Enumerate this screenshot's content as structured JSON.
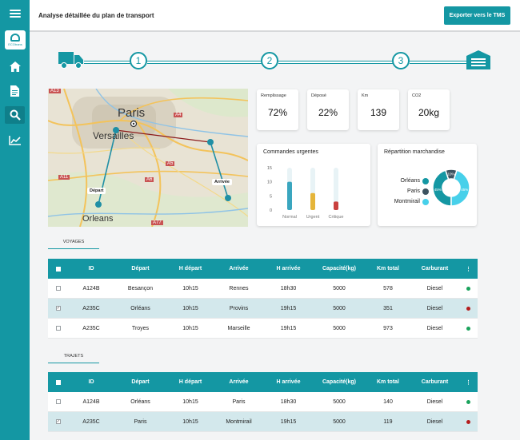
{
  "header": {
    "title": "Analyse détaillée du plan de transport",
    "export_label": "Exporter vers le TMS"
  },
  "sidebar": {
    "logo_text": "ECOtrans",
    "items": [
      {
        "icon": "menu-icon"
      },
      {
        "icon": "home-icon"
      },
      {
        "icon": "document-icon"
      },
      {
        "icon": "search-icon",
        "active": true
      },
      {
        "icon": "chart-icon"
      }
    ]
  },
  "stepper": {
    "steps": [
      "1",
      "2",
      "3"
    ]
  },
  "map": {
    "labels": {
      "paris": "Paris",
      "versailles": "Versailles",
      "orleans": "Orleans"
    },
    "roads": {
      "a13": "A13",
      "a4": "A4",
      "a5": "A5",
      "a11": "A11",
      "a6": "A6",
      "a77": "A77"
    },
    "depart": "Départ",
    "arrivee": "Arrivée"
  },
  "stats": [
    {
      "label": "Remplissage",
      "value": "72%"
    },
    {
      "label": "Déposé",
      "value": "22%"
    },
    {
      "label": "Km",
      "value": "139"
    },
    {
      "label": "CO2",
      "value": "20kg"
    }
  ],
  "commandes": {
    "title": "Commandes urgentes",
    "chart_data": {
      "type": "bar",
      "title": "Commandes urgentes",
      "categories": [
        "Normal",
        "Urgent",
        "Critique"
      ],
      "values": [
        10,
        6,
        3
      ],
      "ylim": [
        0,
        15
      ],
      "yticks": [
        "15",
        "10",
        "5",
        "0"
      ],
      "colors": [
        "#3aa6bf",
        "#e5b53a",
        "#c9413f"
      ]
    }
  },
  "repartition": {
    "title": "Répartition marchandise",
    "legend": [
      {
        "label": "Orléans",
        "color": "#1497a3"
      },
      {
        "label": "Paris",
        "color": "#3d5360"
      },
      {
        "label": "Montmirail",
        "color": "#47d0ea"
      }
    ],
    "chart_data": {
      "type": "pie",
      "categories": [
        "Orléans",
        "Paris",
        "Montmirail"
      ],
      "values": [
        45,
        10,
        45
      ],
      "labels": [
        "45%",
        "10%",
        "45%"
      ]
    }
  },
  "tabs": {
    "voyages": "VOYAGES",
    "trajets": "TRAJETS"
  },
  "columns": [
    "ID",
    "Départ",
    "H départ",
    "Arrivée",
    "H arrivée",
    "Capacité(kg)",
    "Km total",
    "Carburant"
  ],
  "more_symbol": "⋮",
  "check_symbol": "✓",
  "voyages": [
    {
      "id": "A124B",
      "depart": "Besançon",
      "h_depart": "10h15",
      "arrivee": "Rennes",
      "h_arrivee": "18h30",
      "capacite": "5000",
      "km": "578",
      "carburant": "Diesel",
      "checked": false,
      "status": "#1aa35c"
    },
    {
      "id": "A235C",
      "depart": "Orléans",
      "h_depart": "10h15",
      "arrivee": "Provins",
      "h_arrivee": "19h15",
      "capacite": "5000",
      "km": "351",
      "carburant": "Diesel",
      "checked": true,
      "status": "#b51d1d"
    },
    {
      "id": "A235C",
      "depart": "Troyes",
      "h_depart": "10h15",
      "arrivee": "Marseille",
      "h_arrivee": "19h15",
      "capacite": "5000",
      "km": "973",
      "carburant": "Diesel",
      "checked": false,
      "status": "#1aa35c"
    }
  ],
  "trajets": [
    {
      "id": "A124B",
      "depart": "Orléans",
      "h_depart": "10h15",
      "arrivee": "Paris",
      "h_arrivee": "18h30",
      "capacite": "5000",
      "km": "140",
      "carburant": "Diesel",
      "checked": false,
      "status": "#1aa35c"
    },
    {
      "id": "A235C",
      "depart": "Paris",
      "h_depart": "10h15",
      "arrivee": "Montmirail",
      "h_arrivee": "19h15",
      "capacite": "5000",
      "km": "119",
      "carburant": "Diesel",
      "checked": true,
      "status": "#b51d1d"
    }
  ]
}
